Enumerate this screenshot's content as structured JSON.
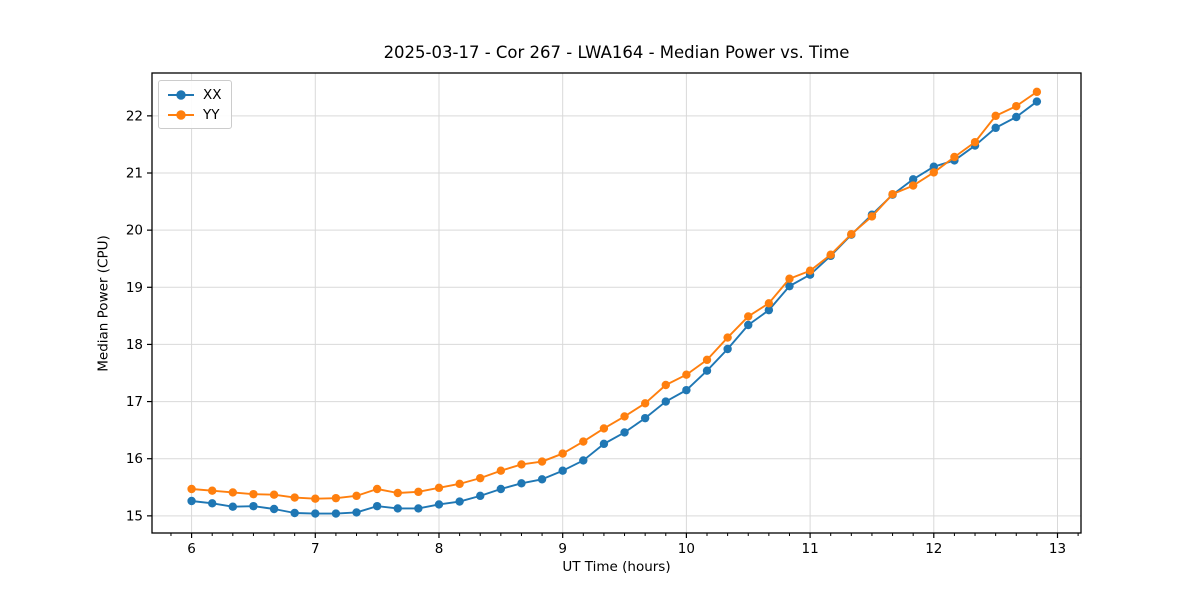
{
  "window": {
    "background": "#ffffff"
  },
  "chart_data": {
    "type": "line",
    "title": "2025-03-17 - Cor 267 - LWA164 - Median Power vs. Time",
    "xlabel": "UT Time (hours)",
    "ylabel": "Median Power (CPU)",
    "xlim": [
      5.68,
      13.19
    ],
    "ylim": [
      14.7,
      22.75
    ],
    "xticks": [
      6,
      7,
      8,
      9,
      10,
      11,
      12,
      13
    ],
    "yticks": [
      15,
      16,
      17,
      18,
      19,
      20,
      21,
      22
    ],
    "x_minor_tick_step_hours": 0.1667,
    "grid": true,
    "legend_position": "upper-left",
    "marker": "circle",
    "x": [
      6.0,
      6.1667,
      6.3333,
      6.5,
      6.6667,
      6.8333,
      7.0,
      7.1667,
      7.3333,
      7.5,
      7.6667,
      7.8333,
      8.0,
      8.1667,
      8.3333,
      8.5,
      8.6667,
      8.8333,
      9.0,
      9.1667,
      9.3333,
      9.5,
      9.6667,
      9.8333,
      10.0,
      10.1667,
      10.3333,
      10.5,
      10.6667,
      10.8333,
      11.0,
      11.1667,
      11.3333,
      11.5,
      11.6667,
      11.8333,
      12.0,
      12.1667,
      12.3333,
      12.5,
      12.6667,
      12.8333
    ],
    "series": [
      {
        "name": "XX",
        "color": "#1f77b4",
        "values": [
          15.26,
          15.22,
          15.16,
          15.17,
          15.12,
          15.05,
          15.04,
          15.04,
          15.06,
          15.17,
          15.13,
          15.13,
          15.2,
          15.25,
          15.35,
          15.47,
          15.57,
          15.64,
          15.79,
          15.97,
          16.26,
          16.46,
          16.71,
          17.0,
          17.2,
          17.54,
          17.92,
          18.34,
          18.6,
          19.02,
          19.22,
          19.55,
          19.92,
          20.27,
          20.62,
          20.89,
          21.11,
          21.22,
          21.48,
          21.79,
          21.98,
          22.25
        ]
      },
      {
        "name": "YY",
        "color": "#ff7f0e",
        "values": [
          15.47,
          15.44,
          15.41,
          15.38,
          15.37,
          15.32,
          15.3,
          15.31,
          15.35,
          15.47,
          15.4,
          15.42,
          15.49,
          15.56,
          15.66,
          15.79,
          15.9,
          15.95,
          16.09,
          16.3,
          16.53,
          16.74,
          16.97,
          17.29,
          17.47,
          17.73,
          18.12,
          18.49,
          18.72,
          19.15,
          19.29,
          19.57,
          19.93,
          20.24,
          20.63,
          20.78,
          21.01,
          21.28,
          21.54,
          22.0,
          22.17,
          22.42
        ]
      }
    ]
  },
  "colors": {
    "grid": "#d9d9d9",
    "spine": "#000000",
    "tick": "#000000",
    "text": "#000000",
    "legend_border": "#cccccc"
  }
}
